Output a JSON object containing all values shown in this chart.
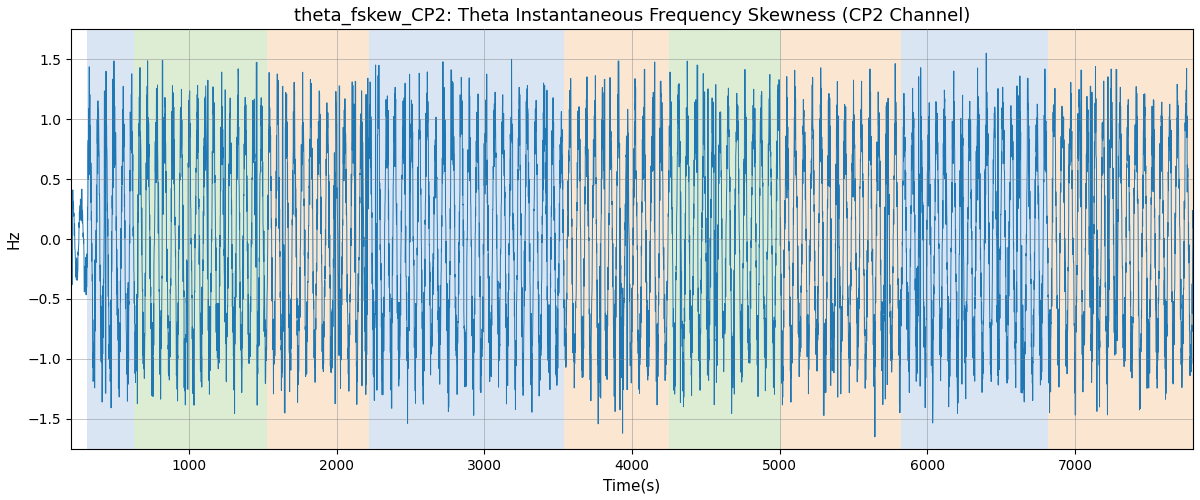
{
  "title": "theta_fskew_CP2: Theta Instantaneous Frequency Skewness (CP2 Channel)",
  "xlabel": "Time(s)",
  "ylabel": "Hz",
  "ylim": [
    -1.75,
    1.75
  ],
  "yticks": [
    -1.5,
    -1.0,
    -0.5,
    0.0,
    0.5,
    1.0,
    1.5
  ],
  "xlim": [
    200,
    7800
  ],
  "xticks": [
    1000,
    2000,
    3000,
    4000,
    5000,
    6000,
    7000
  ],
  "line_color": "#1f77b4",
  "line_width": 0.7,
  "background_color": "#ffffff",
  "bg_bands": [
    {
      "xmin": 310,
      "xmax": 630,
      "color": "#aec6e8",
      "alpha": 0.45
    },
    {
      "xmin": 630,
      "xmax": 1530,
      "color": "#b5d9a0",
      "alpha": 0.45
    },
    {
      "xmin": 1530,
      "xmax": 2220,
      "color": "#f5c99a",
      "alpha": 0.45
    },
    {
      "xmin": 2220,
      "xmax": 3360,
      "color": "#aec6e8",
      "alpha": 0.45
    },
    {
      "xmin": 3360,
      "xmax": 3540,
      "color": "#aec6e8",
      "alpha": 0.45
    },
    {
      "xmin": 3540,
      "xmax": 4250,
      "color": "#f5c99a",
      "alpha": 0.45
    },
    {
      "xmin": 4250,
      "xmax": 5010,
      "color": "#b5d9a0",
      "alpha": 0.45
    },
    {
      "xmin": 5010,
      "xmax": 5820,
      "color": "#f5c99a",
      "alpha": 0.45
    },
    {
      "xmin": 5820,
      "xmax": 6820,
      "color": "#aec6e8",
      "alpha": 0.45
    },
    {
      "xmin": 6820,
      "xmax": 7800,
      "color": "#f5c99a",
      "alpha": 0.45
    }
  ],
  "seed": 12345,
  "n_points": 7500,
  "time_start": 200,
  "time_end": 7800,
  "title_fontsize": 13,
  "label_fontsize": 11,
  "tick_fontsize": 10
}
